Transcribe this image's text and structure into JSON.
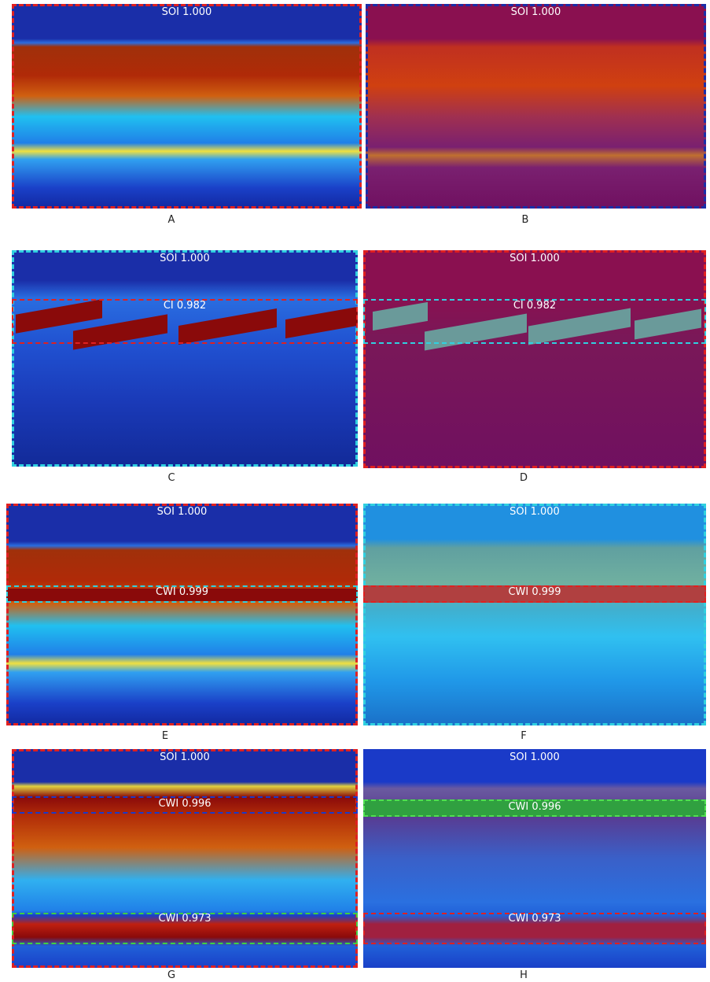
{
  "panels": [
    {
      "label": "A",
      "detections": [
        "SOI 1.000"
      ]
    },
    {
      "label": "B",
      "detections": [
        "SOI 1.000"
      ]
    },
    {
      "label": "C",
      "detections": [
        "SOI 1.000",
        "CI 0.982"
      ]
    },
    {
      "label": "D",
      "detections": [
        "SOI 1.000",
        "CI 0.982"
      ]
    },
    {
      "label": "E",
      "detections": [
        "SOI 1.000",
        "CWI 0.999"
      ]
    },
    {
      "label": "F",
      "detections": [
        "SOI 1.000",
        "CWI 0.999"
      ]
    },
    {
      "label": "G",
      "detections": [
        "SOI 1.000",
        "CWI 0.996",
        "CWI 0.973"
      ]
    },
    {
      "label": "H",
      "detections": [
        "SOI 1.000",
        "CWI 0.996",
        "CWI 0.973"
      ]
    }
  ]
}
